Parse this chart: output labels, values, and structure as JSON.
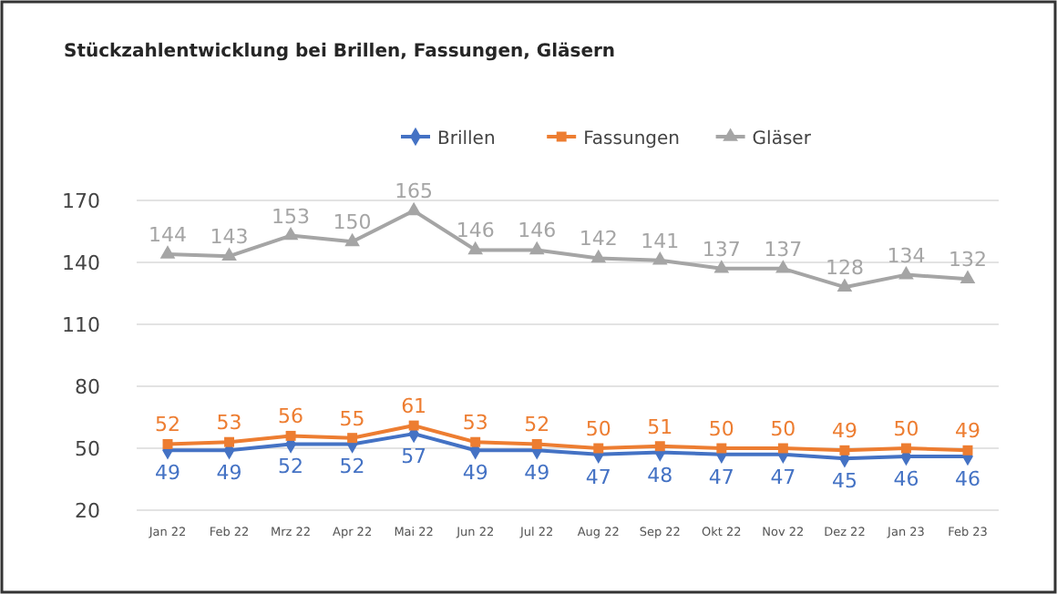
{
  "chart_data": {
    "type": "line",
    "title": "Stückzahlentwicklung bei Brillen, Fassungen, Gläsern",
    "categories": [
      "Jan 22",
      "Feb 22",
      "Mrz 22",
      "Apr 22",
      "Mai 22",
      "Jun 22",
      "Jul 22",
      "Aug 22",
      "Sep 22",
      "Okt 22",
      "Nov 22",
      "Dez 22",
      "Jan 23",
      "Feb 23"
    ],
    "series": [
      {
        "name": "Brillen",
        "color": "#4472c4",
        "marker": "diamond",
        "values": [
          49,
          49,
          52,
          52,
          57,
          49,
          49,
          47,
          48,
          47,
          47,
          45,
          46,
          46
        ]
      },
      {
        "name": "Fassungen",
        "color": "#ed7d31",
        "marker": "square",
        "values": [
          52,
          53,
          56,
          55,
          61,
          53,
          52,
          50,
          51,
          50,
          50,
          49,
          50,
          49
        ]
      },
      {
        "name": "Gläser",
        "color": "#a5a5a5",
        "marker": "triangle",
        "values": [
          144,
          143,
          153,
          150,
          165,
          146,
          146,
          142,
          141,
          137,
          137,
          128,
          134,
          132
        ]
      }
    ],
    "ylim": [
      20,
      170
    ],
    "yticks": [
      20,
      50,
      80,
      110,
      140,
      170
    ],
    "grid": "y",
    "legend": "top",
    "data_labels": true,
    "line_style": "solid"
  }
}
